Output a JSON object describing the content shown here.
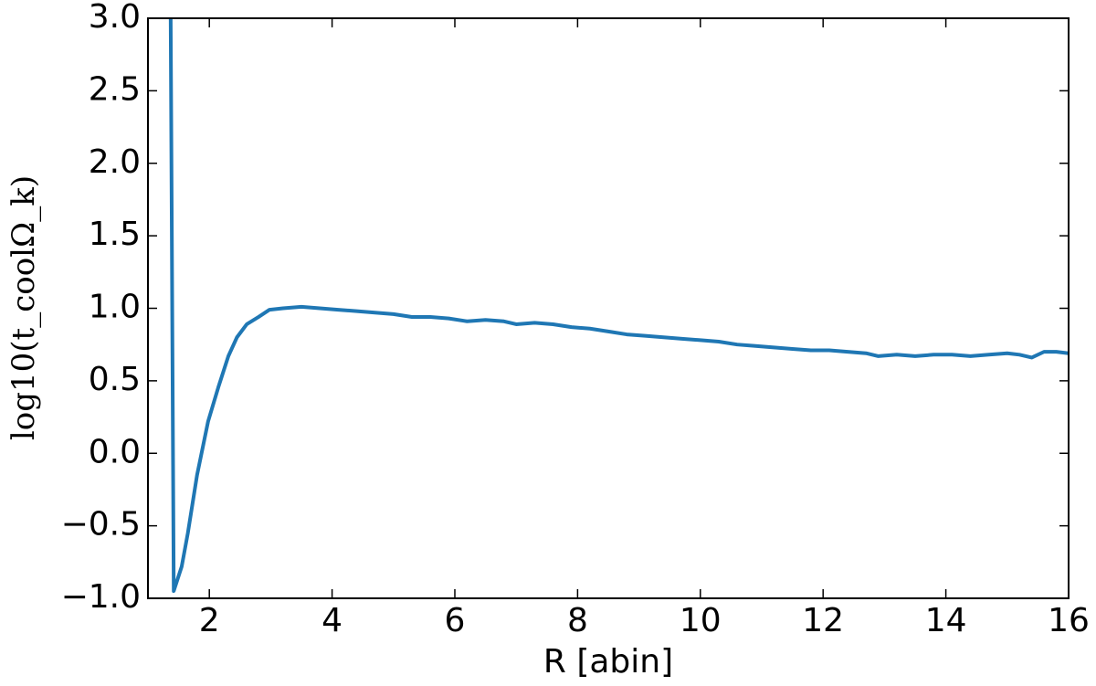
{
  "chart_data": {
    "type": "line",
    "xlabel": "R [abin]",
    "ylabel": "log10(t_coolΩ_k)",
    "xlim": [
      1,
      16
    ],
    "ylim": [
      -1,
      3
    ],
    "xticks": [
      2,
      4,
      6,
      8,
      10,
      12,
      14,
      16
    ],
    "yticks": [
      {
        "value": -1,
        "label": "−1.0"
      },
      {
        "value": -0.5,
        "label": "−0.5"
      },
      {
        "value": 0,
        "label": "0.0"
      },
      {
        "value": 0.5,
        "label": "0.5"
      },
      {
        "value": 1,
        "label": "1.0"
      },
      {
        "value": 1.5,
        "label": "1.5"
      },
      {
        "value": 2,
        "label": "2.0"
      },
      {
        "value": 2.5,
        "label": "2.5"
      },
      {
        "value": 3,
        "label": "3.0"
      }
    ],
    "x": [
      1.37,
      1.42,
      1.55,
      1.65,
      1.8,
      1.98,
      2.15,
      2.31,
      2.45,
      2.61,
      2.8,
      2.98,
      3.2,
      3.5,
      3.8,
      4.1,
      4.4,
      4.7,
      5.0,
      5.3,
      5.6,
      5.9,
      6.2,
      6.5,
      6.8,
      7.0,
      7.3,
      7.6,
      7.9,
      8.2,
      8.5,
      8.8,
      9.1,
      9.4,
      9.7,
      10.0,
      10.3,
      10.6,
      10.9,
      11.2,
      11.5,
      11.8,
      12.1,
      12.4,
      12.7,
      12.9,
      13.2,
      13.5,
      13.8,
      14.1,
      14.4,
      14.7,
      15.0,
      15.2,
      15.4,
      15.6,
      15.8,
      16.0
    ],
    "series": [
      {
        "name": "log10(t_cool Omega_k)",
        "color": "#1f77b4",
        "values": [
          3.0,
          -0.95,
          -0.78,
          -0.55,
          -0.15,
          0.22,
          0.46,
          0.67,
          0.8,
          0.89,
          0.94,
          0.99,
          1.0,
          1.01,
          1.0,
          0.99,
          0.98,
          0.97,
          0.96,
          0.94,
          0.94,
          0.93,
          0.91,
          0.92,
          0.91,
          0.89,
          0.9,
          0.89,
          0.87,
          0.86,
          0.84,
          0.82,
          0.81,
          0.8,
          0.79,
          0.78,
          0.77,
          0.75,
          0.74,
          0.73,
          0.72,
          0.71,
          0.71,
          0.7,
          0.69,
          0.67,
          0.68,
          0.67,
          0.68,
          0.68,
          0.67,
          0.68,
          0.69,
          0.68,
          0.66,
          0.7,
          0.7,
          0.69
        ]
      }
    ]
  }
}
